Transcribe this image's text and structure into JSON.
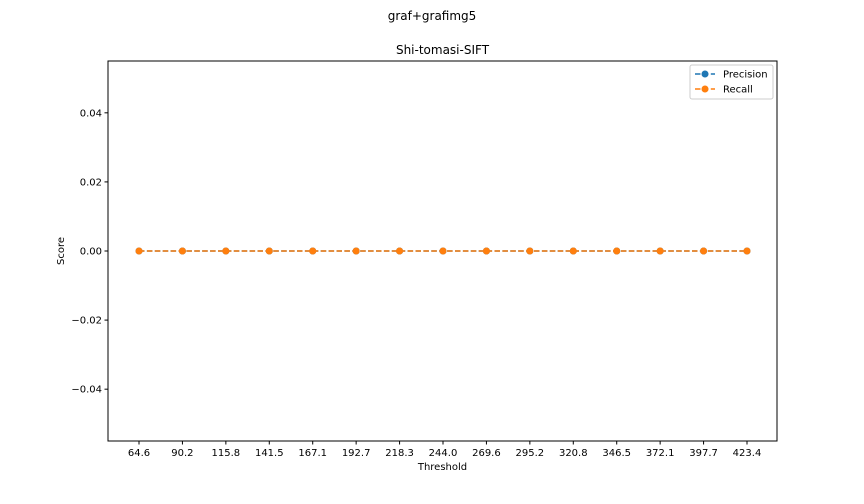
{
  "figure_title": "graf+grafimg5",
  "chart_data": {
    "type": "line",
    "title": "Shi-tomasi-SIFT",
    "xlabel": "Threshold",
    "ylabel": "Score",
    "categories": [
      "64.6",
      "90.2",
      "115.8",
      "141.5",
      "167.1",
      "192.7",
      "218.3",
      "244.0",
      "269.6",
      "295.2",
      "320.8",
      "346.5",
      "372.1",
      "397.7",
      "423.4"
    ],
    "series": [
      {
        "name": "Precision",
        "color": "#1f77b4",
        "line_style": "dashed",
        "marker": "circle",
        "values": [
          0,
          0,
          0,
          0,
          0,
          0,
          0,
          0,
          0,
          0,
          0,
          0,
          0,
          0,
          0
        ]
      },
      {
        "name": "Recall",
        "color": "#ff7f0e",
        "line_style": "dashed",
        "marker": "circle",
        "values": [
          0,
          0,
          0,
          0,
          0,
          0,
          0,
          0,
          0,
          0,
          0,
          0,
          0,
          0,
          0
        ]
      }
    ],
    "ylim": [
      -0.055,
      0.055
    ],
    "yticks": [
      -0.04,
      -0.02,
      0.0,
      0.02,
      0.04
    ],
    "ytick_labels": [
      "−0.04",
      "−0.02",
      "0.00",
      "0.02",
      "0.04"
    ],
    "grid": false,
    "legend_position": "top-right"
  }
}
